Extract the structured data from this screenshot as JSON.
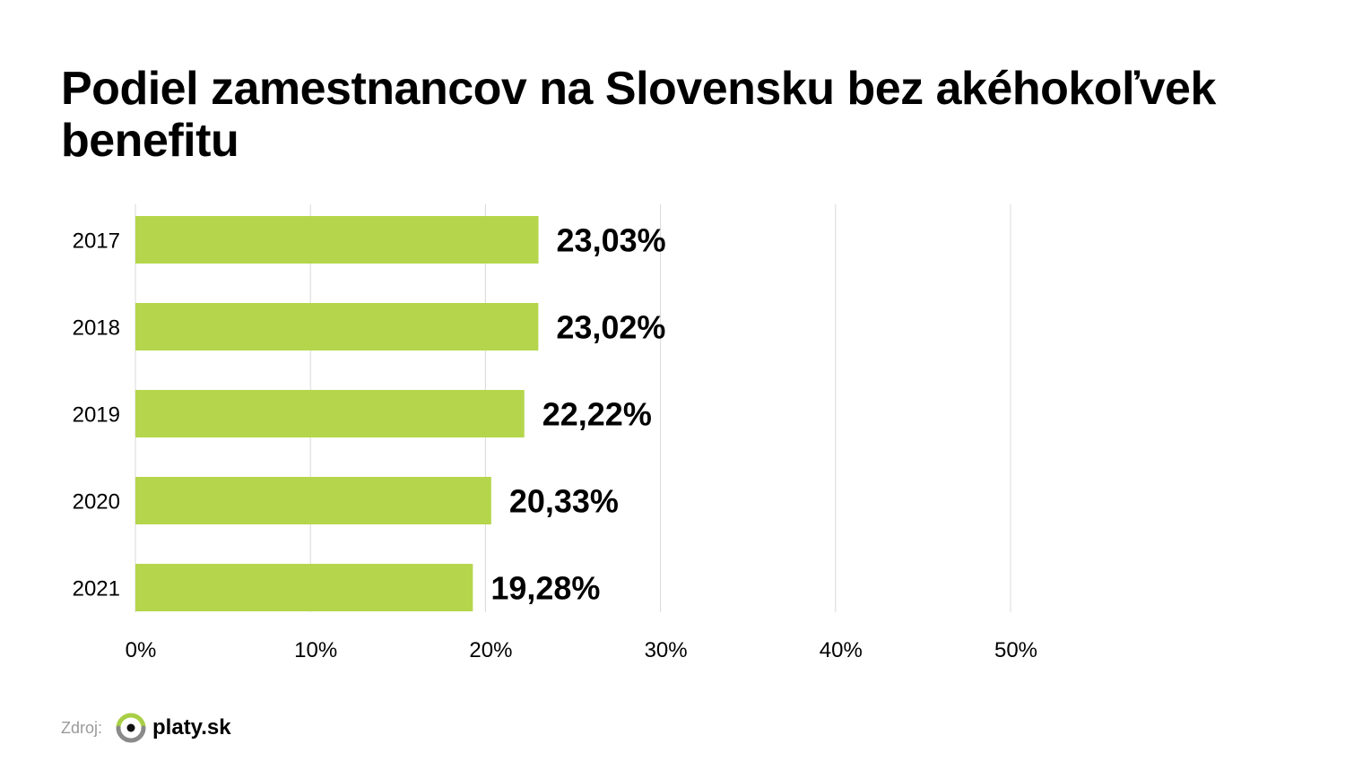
{
  "title": "Podiel zamestnancov na Slovensku bez akéhokoľvek benefitu",
  "source": {
    "label": "Zdroj:",
    "logo_text": "platy.sk",
    "logo_icon": "platy-sk-logo-icon"
  },
  "colors": {
    "bar": "#b5d64c",
    "grid": "#d9d9d9",
    "text": "#000000",
    "logo_green": "#a8cf45",
    "logo_gray": "#8a8a8a"
  },
  "chart_data": {
    "type": "bar",
    "orientation": "horizontal",
    "categories": [
      "2017",
      "2018",
      "2019",
      "2020",
      "2021"
    ],
    "values": [
      23.03,
      23.02,
      22.22,
      20.33,
      19.28
    ],
    "value_labels": [
      "23,03%",
      "23,02%",
      "22,22%",
      "20,33%",
      "19,28%"
    ],
    "xlim": [
      0,
      50
    ],
    "x_ticks": [
      0,
      10,
      20,
      30,
      40,
      50
    ],
    "x_tick_labels": [
      "0%",
      "10%",
      "20%",
      "30%",
      "40%",
      "50%"
    ],
    "grid": true,
    "legend": "none"
  }
}
